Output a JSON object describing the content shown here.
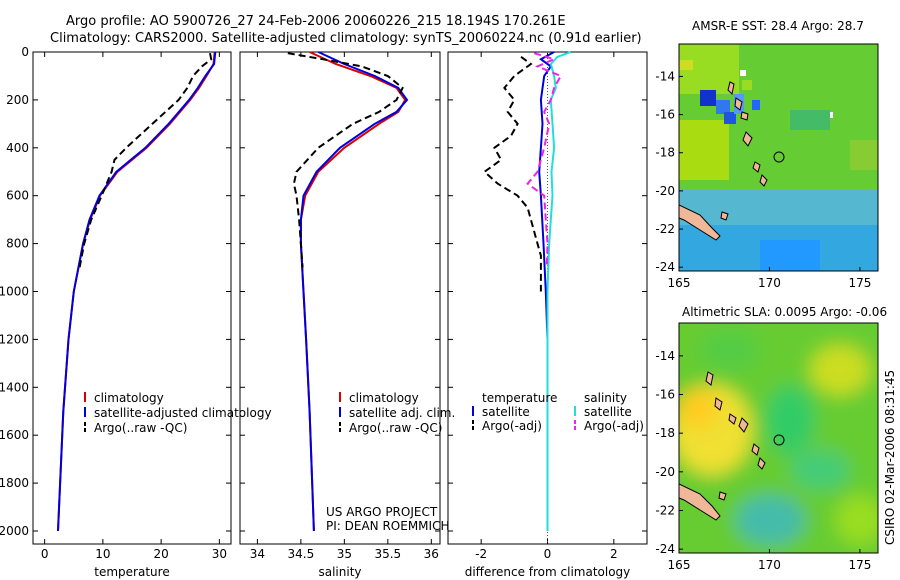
{
  "title_line1": "Argo profile: AO 5900726_27 24-Feb-2006 20060226_215 18.194S 170.261E",
  "title_line2": "Climatology: CARS2000. Satellite-adjusted climatology: synTS_20060224.nc (0.91d earlier)",
  "footer_project": "US ARGO PROJECT",
  "footer_pi": "PI: DEAN ROEMMICH",
  "side_stamp": "CSIRO 02-Mar-2006 08:31:45",
  "colors": {
    "red": "#dd0000",
    "blue": "#0000dd",
    "black": "#000000",
    "cyan": "#22dddd",
    "magenta": "#ee22ee"
  },
  "chart_data": [
    {
      "type": "line",
      "id": "temperature",
      "xlabel": "temperature",
      "xlim": [
        -2,
        32
      ],
      "ylim": [
        0,
        2100
      ],
      "xticks": [
        0,
        10,
        20,
        30
      ],
      "yticks": [
        0,
        200,
        400,
        600,
        800,
        1000,
        1200,
        1400,
        1600,
        1800,
        2000
      ],
      "legend": [
        "climatology",
        "satellite-adjusted climatology",
        "Argo(..raw -QC)"
      ],
      "series": [
        {
          "name": "climatology",
          "color": "#dd0000",
          "dash": "",
          "depth": [
            0,
            50,
            100,
            150,
            200,
            300,
            400,
            500,
            600,
            700,
            800,
            1000,
            1200,
            1500,
            2000
          ],
          "values": [
            29.2,
            29.0,
            27.8,
            26.5,
            25.0,
            21.5,
            17.5,
            12.5,
            9.5,
            7.8,
            6.6,
            5.0,
            4.1,
            3.2,
            2.3
          ]
        },
        {
          "name": "satellite-adjusted climatology",
          "color": "#0000dd",
          "dash": "",
          "depth": [
            0,
            50,
            100,
            150,
            200,
            300,
            400,
            500,
            600,
            700,
            800,
            1000,
            1200,
            1500,
            2000
          ],
          "values": [
            29.3,
            29.1,
            27.6,
            26.3,
            24.8,
            21.3,
            17.3,
            12.3,
            9.4,
            7.7,
            6.6,
            5.0,
            4.1,
            3.2,
            2.3
          ]
        },
        {
          "name": "Argo(..raw -QC)",
          "color": "#000000",
          "dash": "7,4",
          "depth": [
            5,
            30,
            60,
            100,
            150,
            200,
            300,
            400,
            450,
            500,
            600,
            700,
            800,
            900
          ],
          "values": [
            28.4,
            28.6,
            27.0,
            25.5,
            24.5,
            23.0,
            18.5,
            14.0,
            12.0,
            11.5,
            9.8,
            8.0,
            6.8,
            6.0
          ]
        }
      ]
    },
    {
      "type": "line",
      "id": "salinity",
      "xlabel": "salinity",
      "xlim": [
        33.8,
        36.1
      ],
      "ylim": [
        0,
        2100
      ],
      "xticks": [
        34,
        34.5,
        35,
        35.5,
        36
      ],
      "yticks": [],
      "legend": [
        "climatology",
        "satellite adj. clim.",
        "Argo(..raw -QC)"
      ],
      "series": [
        {
          "name": "climatology",
          "color": "#dd0000",
          "dash": "",
          "depth": [
            0,
            50,
            100,
            150,
            200,
            250,
            300,
            400,
            500,
            600,
            700,
            800,
            1000,
            1200,
            1500,
            1800,
            2000
          ],
          "values": [
            34.6,
            34.9,
            35.3,
            35.6,
            35.7,
            35.62,
            35.4,
            35.0,
            34.7,
            34.55,
            34.5,
            34.5,
            34.53,
            34.56,
            34.6,
            34.63,
            34.65
          ]
        },
        {
          "name": "satellite adj. clim.",
          "color": "#0000dd",
          "dash": "",
          "depth": [
            0,
            50,
            100,
            150,
            200,
            250,
            300,
            400,
            500,
            600,
            700,
            800,
            1000,
            1200,
            1500,
            1800,
            2000
          ],
          "values": [
            34.7,
            35.0,
            35.35,
            35.62,
            35.72,
            35.6,
            35.35,
            34.95,
            34.68,
            34.53,
            34.5,
            34.5,
            34.53,
            34.56,
            34.6,
            34.63,
            34.65
          ]
        },
        {
          "name": "Argo(..raw -QC)",
          "color": "#000000",
          "dash": "7,4",
          "depth": [
            5,
            30,
            60,
            100,
            150,
            200,
            250,
            300,
            400,
            500,
            550,
            600,
            700,
            800,
            900
          ],
          "values": [
            34.35,
            34.75,
            35.2,
            35.5,
            35.67,
            35.6,
            35.4,
            35.1,
            34.7,
            34.45,
            34.42,
            34.45,
            34.48,
            34.5,
            34.52
          ]
        }
      ]
    },
    {
      "type": "line",
      "id": "difference",
      "xlabel": "difference from climatology",
      "xlim": [
        -3,
        3
      ],
      "ylim": [
        0,
        2100
      ],
      "xticks": [
        -2,
        0,
        2
      ],
      "yticks": [],
      "legend_headers": [
        "temperature",
        "salinity"
      ],
      "legend": [
        "satellite",
        "Argo(-adj)",
        "satellite",
        "Argo(-adj)"
      ],
      "series": [
        {
          "name": "temperature satellite",
          "color": "#0000dd",
          "dash": "",
          "depth": [
            0,
            30,
            60,
            100,
            200,
            300,
            400,
            500,
            600,
            800,
            1000,
            1200,
            1500,
            2000
          ],
          "values": [
            0.2,
            -0.2,
            0.1,
            -0.1,
            -0.2,
            -0.15,
            -0.2,
            -0.25,
            -0.2,
            -0.12,
            -0.05,
            0,
            0,
            0
          ]
        },
        {
          "name": "temperature Argo(-adj)",
          "color": "#000000",
          "dash": "7,4",
          "depth": [
            20,
            50,
            100,
            150,
            200,
            250,
            300,
            350,
            400,
            450,
            500,
            550,
            600,
            650,
            700,
            800,
            850,
            900,
            950,
            1000
          ],
          "values": [
            -0.8,
            -0.5,
            -1.0,
            -1.3,
            -1.0,
            -1.2,
            -0.9,
            -1.1,
            -1.6,
            -1.4,
            -1.9,
            -1.5,
            -0.9,
            -0.6,
            -0.5,
            -0.3,
            -0.2,
            -0.2,
            -0.2,
            -0.2
          ]
        },
        {
          "name": "salinity satellite",
          "color": "#22dddd",
          "dash": "",
          "depth": [
            0,
            20,
            50,
            100,
            150,
            200,
            300,
            400,
            500,
            600,
            700,
            800,
            1000,
            1500,
            2000
          ],
          "values": [
            0.7,
            0.3,
            0.1,
            0.2,
            0.25,
            0.1,
            0.15,
            0.2,
            0.12,
            0.15,
            0.1,
            0.05,
            0.0,
            0.0,
            0.0
          ]
        },
        {
          "name": "salinity Argo(-adj)",
          "color": "#ee22ee",
          "dash": "7,4",
          "depth": [
            5,
            30,
            60,
            100,
            150,
            200,
            250,
            300,
            400,
            500,
            550,
            600,
            700,
            800,
            900
          ],
          "values": [
            -0.4,
            0.2,
            -0.3,
            0.4,
            0.2,
            0.1,
            -0.1,
            0.05,
            -0.1,
            -0.3,
            -0.6,
            -0.1,
            -0.05,
            0.0,
            -0.02
          ]
        }
      ]
    },
    {
      "type": "heatmap",
      "id": "sst_map",
      "title": "AMSR-E SST: 28.4 Argo: 28.7",
      "xticks": [
        165,
        170,
        175
      ],
      "yticks": [
        -14,
        -16,
        -18,
        -20,
        -22,
        -24
      ],
      "xlim": [
        165,
        176
      ],
      "ylim": [
        -24.2,
        -12.3
      ],
      "marker": [
        170.26,
        -18.19
      ]
    },
    {
      "type": "heatmap",
      "id": "sla_map",
      "title": "Altimetric SLA: 0.0095 Argo: -0.06",
      "xticks": [
        165,
        170,
        175
      ],
      "yticks": [
        -14,
        -16,
        -18,
        -20,
        -22,
        -24
      ],
      "xlim": [
        165,
        176
      ],
      "ylim": [
        -24.2,
        -12.3
      ],
      "marker": [
        170.26,
        -18.19
      ]
    }
  ]
}
